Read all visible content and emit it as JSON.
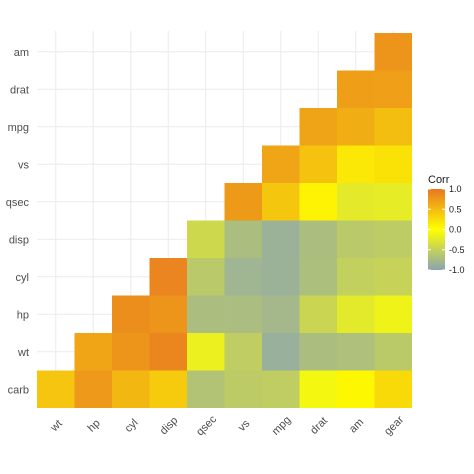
{
  "chart_data": {
    "type": "heatmap",
    "x_categories": [
      "wt",
      "hp",
      "cyl",
      "disp",
      "qsec",
      "vs",
      "mpg",
      "drat",
      "am",
      "gear"
    ],
    "y_categories": [
      "carb",
      "wt",
      "hp",
      "cyl",
      "disp",
      "qsec",
      "vs",
      "mpg",
      "drat",
      "am"
    ],
    "cells": [
      {
        "x": "wt",
        "y": "carb",
        "value": 0.43
      },
      {
        "x": "hp",
        "y": "carb",
        "value": 0.75
      },
      {
        "x": "cyl",
        "y": "carb",
        "value": 0.53
      },
      {
        "x": "disp",
        "y": "carb",
        "value": 0.39
      },
      {
        "x": "qsec",
        "y": "carb",
        "value": -0.66
      },
      {
        "x": "vs",
        "y": "carb",
        "value": -0.57
      },
      {
        "x": "mpg",
        "y": "carb",
        "value": -0.55
      },
      {
        "x": "drat",
        "y": "carb",
        "value": -0.09
      },
      {
        "x": "am",
        "y": "carb",
        "value": 0.06
      },
      {
        "x": "gear",
        "y": "carb",
        "value": 0.27
      },
      {
        "x": "hp",
        "y": "wt",
        "value": 0.66
      },
      {
        "x": "cyl",
        "y": "wt",
        "value": 0.78
      },
      {
        "x": "disp",
        "y": "wt",
        "value": 0.89
      },
      {
        "x": "qsec",
        "y": "wt",
        "value": -0.17
      },
      {
        "x": "vs",
        "y": "wt",
        "value": -0.55
      },
      {
        "x": "mpg",
        "y": "wt",
        "value": -0.87
      },
      {
        "x": "drat",
        "y": "wt",
        "value": -0.71
      },
      {
        "x": "am",
        "y": "wt",
        "value": -0.69
      },
      {
        "x": "gear",
        "y": "wt",
        "value": -0.58
      },
      {
        "x": "cyl",
        "y": "hp",
        "value": 0.83
      },
      {
        "x": "disp",
        "y": "hp",
        "value": 0.79
      },
      {
        "x": "qsec",
        "y": "hp",
        "value": -0.71
      },
      {
        "x": "vs",
        "y": "hp",
        "value": -0.72
      },
      {
        "x": "mpg",
        "y": "hp",
        "value": -0.78
      },
      {
        "x": "drat",
        "y": "hp",
        "value": -0.45
      },
      {
        "x": "am",
        "y": "hp",
        "value": -0.24
      },
      {
        "x": "gear",
        "y": "hp",
        "value": -0.13
      },
      {
        "x": "disp",
        "y": "cyl",
        "value": 0.9
      },
      {
        "x": "qsec",
        "y": "cyl",
        "value": -0.59
      },
      {
        "x": "vs",
        "y": "cyl",
        "value": -0.81
      },
      {
        "x": "mpg",
        "y": "cyl",
        "value": -0.85
      },
      {
        "x": "drat",
        "y": "cyl",
        "value": -0.7
      },
      {
        "x": "am",
        "y": "cyl",
        "value": -0.52
      },
      {
        "x": "gear",
        "y": "cyl",
        "value": -0.49
      },
      {
        "x": "qsec",
        "y": "disp",
        "value": -0.43
      },
      {
        "x": "vs",
        "y": "disp",
        "value": -0.71
      },
      {
        "x": "mpg",
        "y": "disp",
        "value": -0.85
      },
      {
        "x": "drat",
        "y": "disp",
        "value": -0.71
      },
      {
        "x": "am",
        "y": "disp",
        "value": -0.59
      },
      {
        "x": "gear",
        "y": "disp",
        "value": -0.56
      },
      {
        "x": "vs",
        "y": "qsec",
        "value": 0.74
      },
      {
        "x": "mpg",
        "y": "qsec",
        "value": 0.42
      },
      {
        "x": "drat",
        "y": "qsec",
        "value": 0.09
      },
      {
        "x": "am",
        "y": "qsec",
        "value": -0.23
      },
      {
        "x": "gear",
        "y": "qsec",
        "value": -0.21
      },
      {
        "x": "mpg",
        "y": "vs",
        "value": 0.66
      },
      {
        "x": "drat",
        "y": "vs",
        "value": 0.44
      },
      {
        "x": "am",
        "y": "vs",
        "value": 0.17
      },
      {
        "x": "gear",
        "y": "vs",
        "value": 0.21
      },
      {
        "x": "drat",
        "y": "mpg",
        "value": 0.68
      },
      {
        "x": "am",
        "y": "mpg",
        "value": 0.6
      },
      {
        "x": "gear",
        "y": "mpg",
        "value": 0.48
      },
      {
        "x": "am",
        "y": "drat",
        "value": 0.71
      },
      {
        "x": "gear",
        "y": "drat",
        "value": 0.7
      },
      {
        "x": "gear",
        "y": "am",
        "value": 0.79
      }
    ],
    "color_scale": {
      "low": "#8aa4b3",
      "mid": "#ffff00",
      "high": "#e87722",
      "limits": [
        -1,
        1
      ]
    },
    "legend": {
      "title": "Corr",
      "placement": "right",
      "breaks": [
        1.0,
        0.5,
        0.0,
        -0.5,
        -1.0
      ],
      "labels": [
        "1.0",
        "0.5",
        "0.0",
        "-0.5",
        "-1.0"
      ]
    },
    "grid": true,
    "title": "",
    "xlabel": "",
    "ylabel": ""
  }
}
